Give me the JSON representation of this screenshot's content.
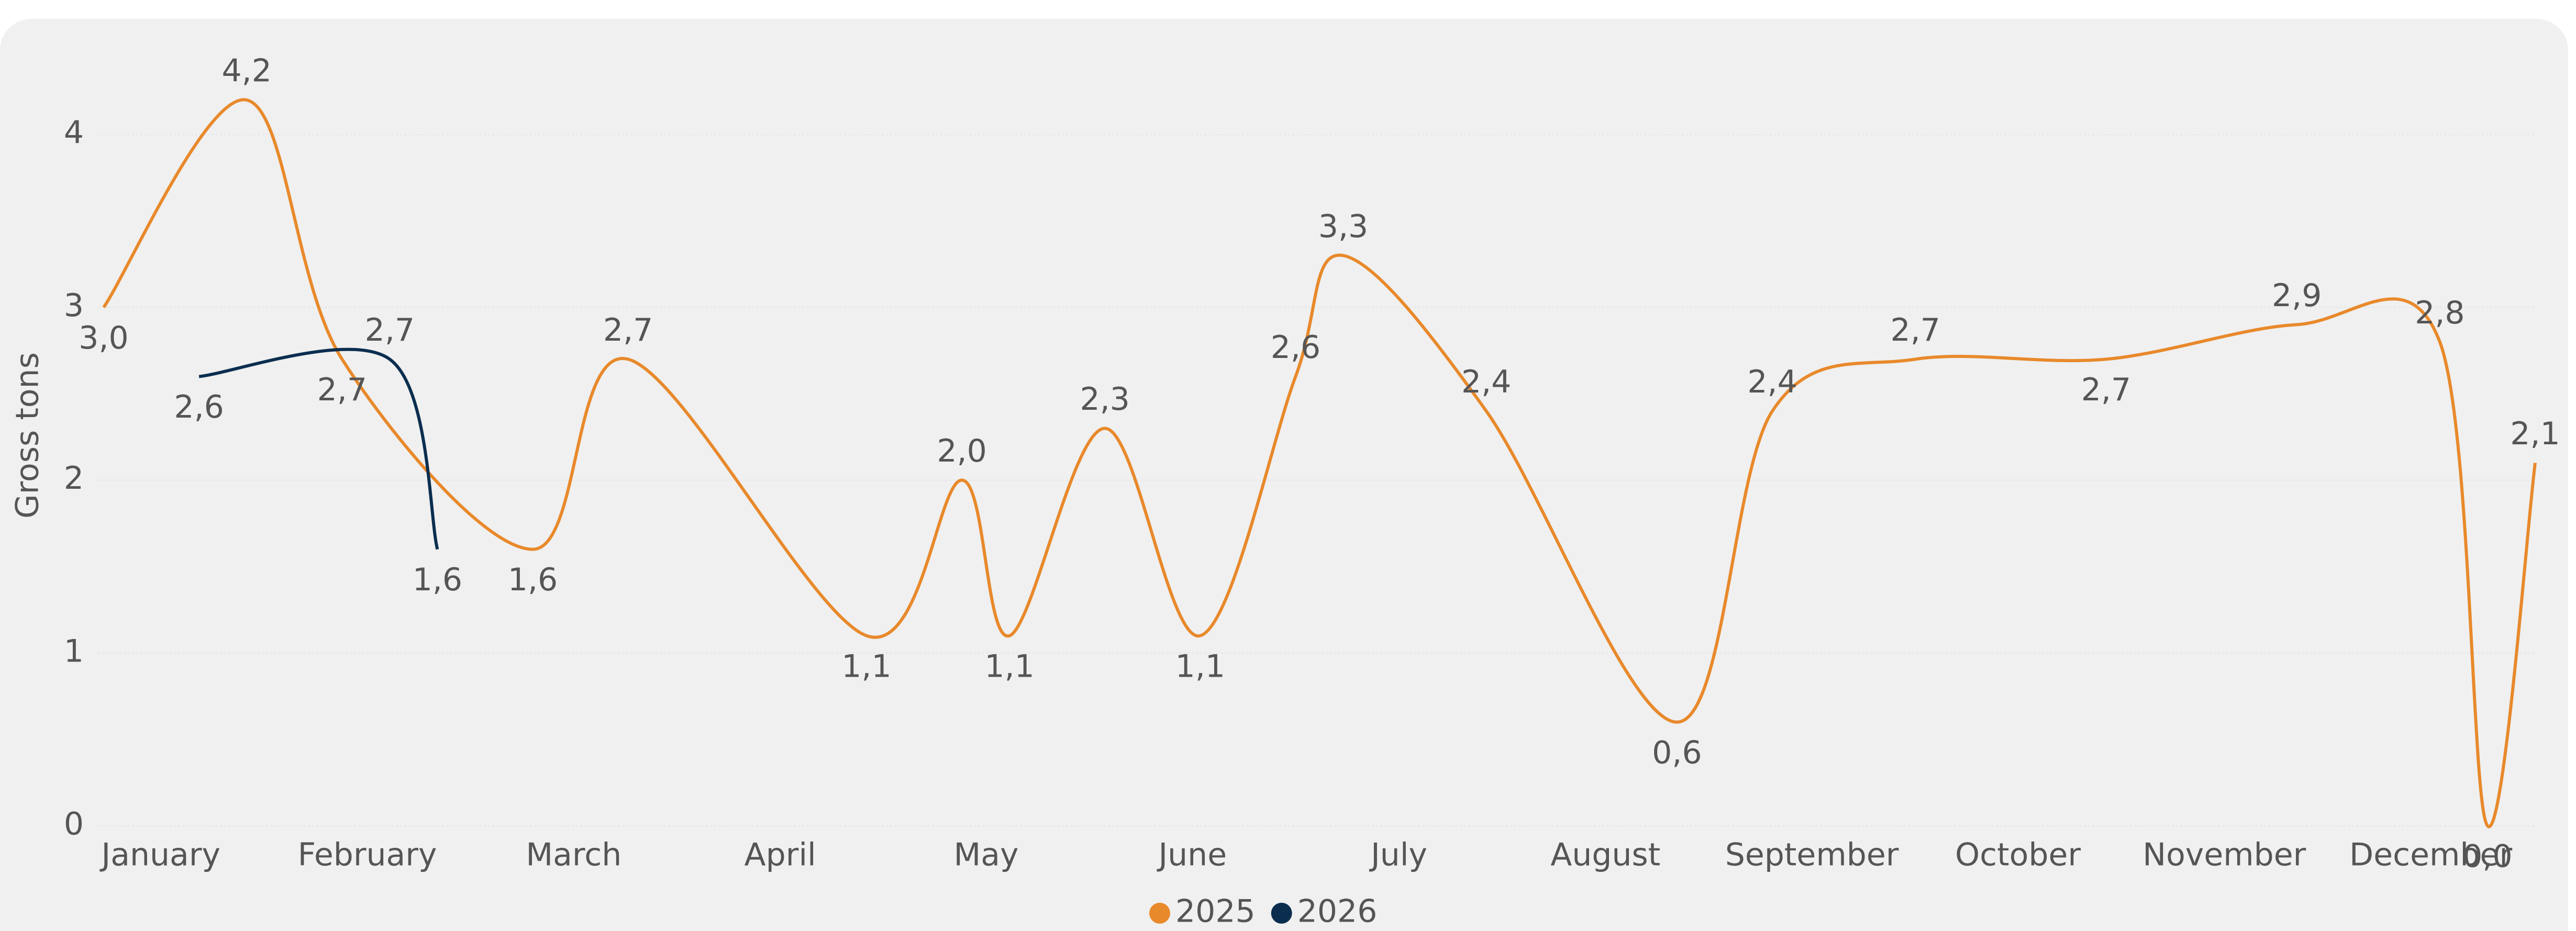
{
  "chart_data": {
    "type": "line",
    "y_label": "Gross tons",
    "x": null,
    "xlim": [
      0,
      51
    ],
    "xticks": [
      {
        "value": 1.2,
        "label": "January"
      },
      {
        "value": 5.53,
        "label": "February"
      },
      {
        "value": 9.86,
        "label": "March"
      },
      {
        "value": 14.19,
        "label": "April"
      },
      {
        "value": 18.51,
        "label": "May"
      },
      {
        "value": 22.84,
        "label": "June"
      },
      {
        "value": 27.17,
        "label": "July"
      },
      {
        "value": 31.5,
        "label": "August"
      },
      {
        "value": 35.83,
        "label": "September"
      },
      {
        "value": 40.15,
        "label": "October"
      },
      {
        "value": 44.48,
        "label": "November"
      },
      {
        "value": 48.81,
        "label": "December"
      }
    ],
    "ylim": [
      0,
      4.5
    ],
    "yticks": [
      0,
      1,
      2,
      3,
      4
    ],
    "grid": true,
    "legend": "bottom",
    "series": [
      {
        "name": "2025",
        "color": "#e8892b",
        "x": [
          0,
          3,
          5,
          9,
          11,
          16,
          18,
          19,
          21,
          23,
          25,
          26,
          29,
          33,
          35,
          38,
          42,
          46,
          49,
          50,
          51
        ],
        "values": [
          3.0,
          4.2,
          2.7,
          1.6,
          2.7,
          1.1,
          2.0,
          1.1,
          2.3,
          1.1,
          2.6,
          3.3,
          2.4,
          0.6,
          2.4,
          2.7,
          2.7,
          2.9,
          2.8,
          0.0,
          2.1
        ],
        "value_labels": [
          "3,0",
          "4,2",
          "2,7",
          "1,6",
          "2,7",
          "1,1",
          "2,0",
          "1,1",
          "2,3",
          "1,1",
          "2,6",
          "3,3",
          "2,4",
          "0,6",
          "2,4",
          "2,7",
          "2,7",
          "2,9",
          "2,8",
          "0,0",
          "2,1"
        ]
      },
      {
        "name": "2026",
        "color": "#0b2e4f",
        "x": [
          2,
          6,
          7
        ],
        "values": [
          2.6,
          2.7,
          1.6
        ],
        "value_labels": [
          "2,6",
          "2,7",
          "1,6"
        ]
      }
    ]
  }
}
